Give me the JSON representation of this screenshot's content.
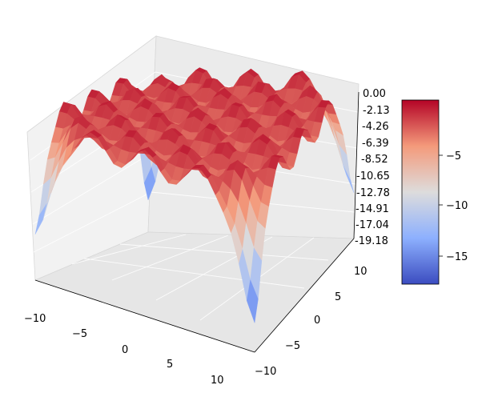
{
  "chart_data": {
    "type": "surface3d",
    "colormap": "coolwarm",
    "title": "",
    "xlabel": "",
    "ylabel": "",
    "zlabel": "",
    "x_ticks": [
      "−10",
      "−5",
      "0",
      "5",
      "10"
    ],
    "y_ticks": [
      "−10",
      "−5",
      "0",
      "5",
      "10"
    ],
    "z_ticks": [
      "0.00",
      "-2.13",
      "-4.26",
      "-6.39",
      "-8.52",
      "-10.65",
      "-12.78",
      "-14.91",
      "-17.04",
      "-19.18"
    ],
    "xlim": [
      -10,
      10
    ],
    "ylim": [
      -10,
      10
    ],
    "zlim": [
      -19.18,
      0
    ],
    "colorbar_ticks": [
      "−5",
      "−10",
      "−15"
    ],
    "colorbar_range": [
      -17.3,
      -0.5
    ],
    "grid": true,
    "surface_minima": [
      {
        "x": -10,
        "y": 10,
        "z": -17.0
      },
      {
        "x": 10,
        "y": -10,
        "z": -17.3
      },
      {
        "x": -10,
        "y": -10,
        "z": -15.5
      },
      {
        "x": 10,
        "y": 10,
        "z": -15.5
      }
    ],
    "plateau_z": -2.5
  }
}
